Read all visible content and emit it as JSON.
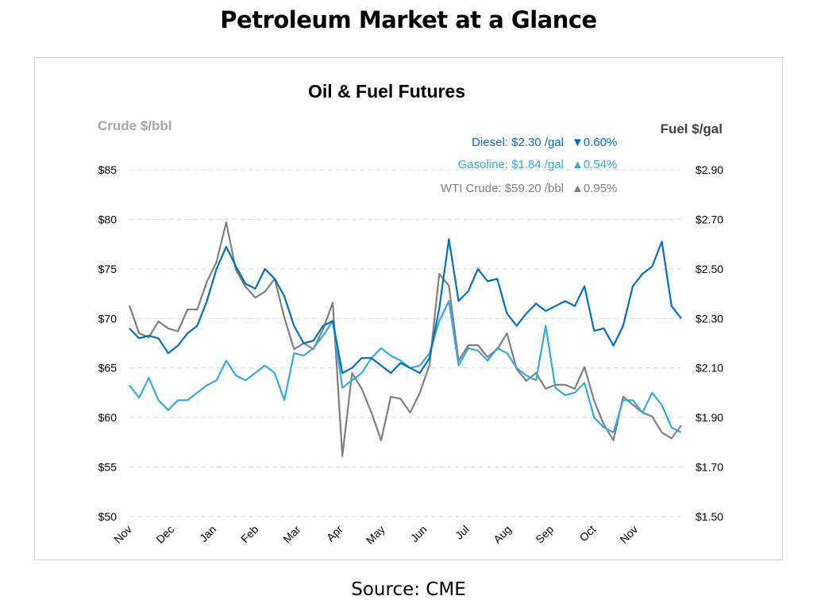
{
  "page_title": "Petroleum Market at a Glance",
  "source": "Source: CME",
  "chart_data": {
    "type": "line",
    "title": "Oil & Fuel Futures",
    "ylabel_left": "Crude $/bbl",
    "ylabel_right": "Fuel $/gal",
    "ylim_left": [
      50,
      85
    ],
    "ylim_right": [
      1.5,
      2.9
    ],
    "yticks_left": [
      "$85",
      "$80",
      "$75",
      "$70",
      "$65",
      "$60",
      "$55",
      "$50"
    ],
    "yticks_right": [
      "$2.90",
      "$2.70",
      "$2.50",
      "$2.30",
      "$2.10",
      "$1.90",
      "$1.70",
      "$1.50"
    ],
    "xticks": [
      "Nov",
      "Dec",
      "Jan",
      "Feb",
      "Mar",
      "Apr",
      "May",
      "Jun",
      "Jul",
      "Aug",
      "Sep",
      "Oct",
      "Nov"
    ],
    "x_unit": "week index",
    "grid": true,
    "legend": [
      {
        "label": "Diesel:",
        "price": "$2.30 /gal",
        "arrow": "▼",
        "change": "0.60%",
        "color": "#0070c0"
      },
      {
        "label": "Gasoline:",
        "price": "$1.84 /gal",
        "arrow": "▲",
        "change": "0.54%",
        "color": "#33a9e0"
      },
      {
        "label": "WTI Crude:",
        "price": "$59.20 /bbl",
        "arrow": "▲",
        "change": "0.95%",
        "color": "#7f7f7f"
      }
    ],
    "series": [
      {
        "name": "WTI Crude",
        "axis": "left",
        "color": "#7f7f7f",
        "values": [
          71.3,
          68.5,
          68.1,
          69.7,
          69.0,
          68.7,
          70.9,
          70.9,
          73.7,
          75.7,
          79.7,
          74.9,
          73.2,
          72.1,
          72.7,
          74.0,
          70.1,
          66.9,
          67.5,
          66.9,
          68.9,
          71.6,
          56.1,
          64.5,
          62.9,
          60.5,
          57.7,
          62.1,
          61.9,
          60.5,
          62.5,
          65.3,
          74.5,
          73.3,
          65.7,
          67.3,
          67.3,
          66.1,
          66.9,
          68.5,
          64.9,
          63.7,
          64.5,
          62.9,
          63.3,
          63.3,
          62.9,
          65.1,
          61.7,
          59.3,
          57.7,
          62.1,
          61.3,
          60.5,
          60.1,
          58.5,
          57.9,
          59.2
        ]
      },
      {
        "name": "Gasoline",
        "axis": "right",
        "color": "#33a9e0",
        "values": [
          2.03,
          1.98,
          2.06,
          1.97,
          1.93,
          1.97,
          1.97,
          2.0,
          2.03,
          2.05,
          2.13,
          2.07,
          2.05,
          2.08,
          2.11,
          2.08,
          1.97,
          2.16,
          2.15,
          2.18,
          2.23,
          2.29,
          2.02,
          2.05,
          2.08,
          2.14,
          2.18,
          2.15,
          2.13,
          2.1,
          2.11,
          2.16,
          2.29,
          2.37,
          2.11,
          2.18,
          2.17,
          2.13,
          2.18,
          2.16,
          2.1,
          2.07,
          2.05,
          2.27,
          2.02,
          1.99,
          2.0,
          2.04,
          1.9,
          1.86,
          1.84,
          1.97,
          1.97,
          1.92,
          2.0,
          1.95,
          1.86,
          1.84
        ]
      },
      {
        "name": "Diesel",
        "axis": "right",
        "color": "#0070c0",
        "values": [
          2.26,
          2.22,
          2.23,
          2.22,
          2.16,
          2.19,
          2.24,
          2.27,
          2.37,
          2.5,
          2.59,
          2.51,
          2.44,
          2.42,
          2.5,
          2.46,
          2.39,
          2.27,
          2.2,
          2.21,
          2.27,
          2.29,
          2.08,
          2.1,
          2.14,
          2.14,
          2.11,
          2.08,
          2.12,
          2.1,
          2.08,
          2.14,
          2.34,
          2.62,
          2.37,
          2.41,
          2.5,
          2.45,
          2.46,
          2.32,
          2.27,
          2.32,
          2.36,
          2.33,
          2.35,
          2.37,
          2.35,
          2.43,
          2.25,
          2.26,
          2.19,
          2.27,
          2.43,
          2.48,
          2.51,
          2.61,
          2.35,
          2.3
        ]
      }
    ]
  }
}
